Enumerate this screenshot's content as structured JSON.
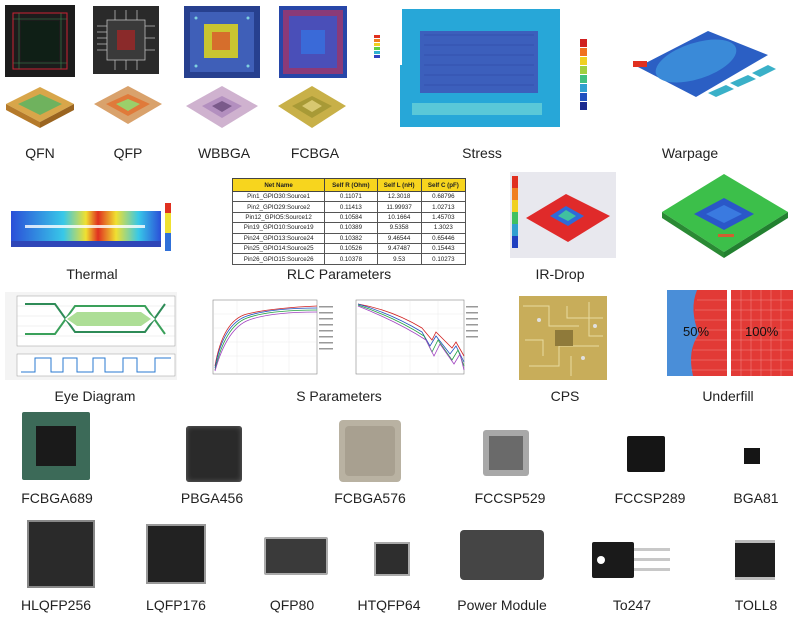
{
  "row1": {
    "labels": [
      "QFN",
      "QFP",
      "WBBGA",
      "FCBGA",
      "Stress",
      "Warpage"
    ]
  },
  "row2": {
    "labels": [
      "Thermal",
      "RLC Parameters",
      "IR-Drop"
    ]
  },
  "row3": {
    "labels": [
      "Eye Diagram",
      "S Parameters",
      "CPS",
      "Underfill"
    ],
    "underfill_values": [
      "50%",
      "100%"
    ]
  },
  "row4": {
    "labels": [
      "FCBGA689",
      "PBGA456",
      "FCBGA576",
      "FCCSP529",
      "FCCSP289",
      "BGA81"
    ]
  },
  "row5": {
    "labels": [
      "HLQFP256",
      "LQFP176",
      "QFP80",
      "HTQFP64",
      "Power Module",
      "To247",
      "TOLL8"
    ]
  },
  "rlc_table": {
    "headers": [
      "Net Name",
      "Self R (Ohm)",
      "Self L (nH)",
      "Self C (pF)"
    ],
    "rows": [
      [
        "Pin1_GPIO30:Source1",
        "0.11071",
        "12.3018",
        "0.68796"
      ],
      [
        "Pin2_GPIO29:Source2",
        "0.11413",
        "11.99937",
        "1.02713"
      ],
      [
        "Pin12_GPIO5:Source12",
        "0.10584",
        "10.1664",
        "1.45703"
      ],
      [
        "Pin19_GPIO10:Source19",
        "0.10389",
        "9.5358",
        "1.3023"
      ],
      [
        "Pin24_GPIO13:Source24",
        "0.10382",
        "9.46544",
        "0.65446"
      ],
      [
        "Pin25_GPIO14:Source25",
        "0.10526",
        "9.47487",
        "0.15443"
      ],
      [
        "Pin26_GPIO15:Source26",
        "0.10378",
        "9.53",
        "0.10273"
      ]
    ]
  },
  "colors": {
    "pcb_green": "#2f6b3e",
    "sim_blue": "#2a63c8",
    "heat_red": "#e23b2a",
    "table_header": "#f7d51e",
    "chip_dark": "#2b2b2b"
  }
}
